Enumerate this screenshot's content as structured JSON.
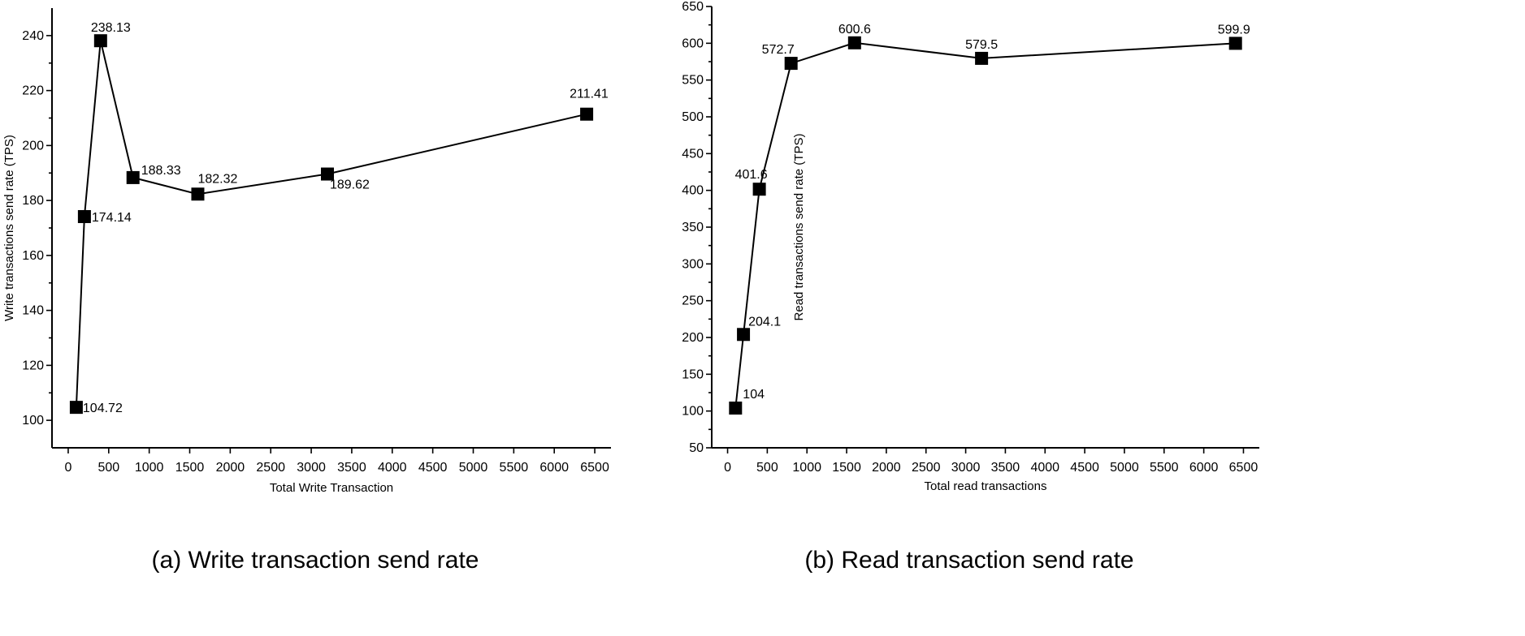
{
  "chart_data": [
    {
      "type": "line",
      "caption": "(a) Write transaction send rate",
      "xlabel": "Total Write Transaction",
      "ylabel": "Write transactions send rate (TPS)",
      "xlim": [
        -200,
        6700
      ],
      "ylim": [
        90,
        250
      ],
      "xticks": [
        0,
        500,
        1000,
        1500,
        2000,
        2500,
        3000,
        3500,
        4000,
        4500,
        5000,
        5500,
        6000,
        6500
      ],
      "yticks": [
        100,
        120,
        140,
        160,
        180,
        200,
        220,
        240
      ],
      "grid": false,
      "series": [
        {
          "marker": "square",
          "x": [
            100,
            200,
            400,
            800,
            1600,
            3200,
            6400
          ],
          "y": [
            104.72,
            174.14,
            238.13,
            188.33,
            182.32,
            189.62,
            211.41
          ],
          "labels": [
            "104.72",
            "174.14",
            "238.13",
            "188.33",
            "182.32",
            "189.62",
            "211.41"
          ]
        }
      ]
    },
    {
      "type": "line",
      "caption": "(b) Read transaction send rate",
      "xlabel": "Total read transactions",
      "ylabel": "Read transactions send rate (TPS)",
      "xlim": [
        -200,
        6700
      ],
      "ylim": [
        50,
        650
      ],
      "xticks": [
        0,
        500,
        1000,
        1500,
        2000,
        2500,
        3000,
        3500,
        4000,
        4500,
        5000,
        5500,
        6000,
        6500
      ],
      "yticks": [
        50,
        100,
        150,
        200,
        250,
        300,
        350,
        400,
        450,
        500,
        550,
        600,
        650
      ],
      "grid": false,
      "series": [
        {
          "marker": "square",
          "x": [
            100,
            200,
            400,
            800,
            1600,
            3200,
            6400
          ],
          "y": [
            104,
            204.1,
            401.6,
            572.7,
            600.6,
            579.5,
            599.9
          ],
          "labels": [
            "104",
            "204.1",
            "401.6",
            "572.7",
            "600.6",
            "579.5",
            "599.9"
          ]
        }
      ]
    }
  ]
}
